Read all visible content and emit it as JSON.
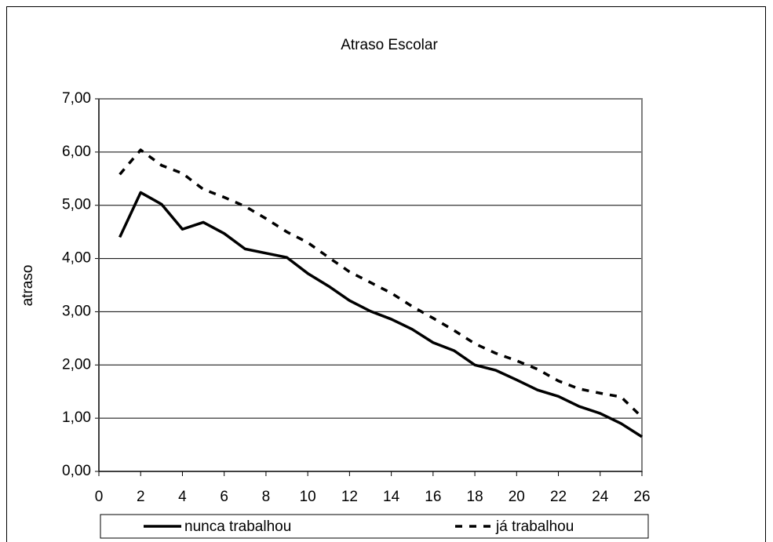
{
  "chart_data": {
    "type": "line",
    "title": "Atraso Escolar",
    "y_label": "atraso",
    "x": [
      1,
      2,
      3,
      4,
      5,
      6,
      7,
      8,
      9,
      10,
      11,
      12,
      13,
      14,
      15,
      16,
      17,
      18,
      19,
      20,
      21,
      22,
      23,
      24,
      25,
      26
    ],
    "series": [
      {
        "name": "nunca trabalhou",
        "color": "#000000",
        "dash": "solid",
        "values": [
          4.4,
          5.24,
          5.02,
          4.55,
          4.68,
          4.47,
          4.18,
          4.1,
          4.02,
          3.72,
          3.48,
          3.21,
          3.01,
          2.86,
          2.67,
          2.42,
          2.27,
          2.0,
          1.9,
          1.72,
          1.53,
          1.41,
          1.22,
          1.09,
          0.9,
          0.65
        ]
      },
      {
        "name": "já trabalhou",
        "color": "#000000",
        "dash": "dashed",
        "values": [
          5.58,
          6.04,
          5.75,
          5.6,
          5.3,
          5.15,
          4.98,
          4.75,
          4.5,
          4.3,
          4.02,
          3.75,
          3.55,
          3.35,
          3.1,
          2.88,
          2.65,
          2.4,
          2.22,
          2.08,
          1.92,
          1.7,
          1.55,
          1.47,
          1.4,
          1.02
        ]
      }
    ],
    "xlim": [
      0,
      26
    ],
    "xticks": [
      0,
      2,
      4,
      6,
      8,
      10,
      12,
      14,
      16,
      18,
      20,
      22,
      24,
      26
    ],
    "ylim": [
      0,
      7
    ],
    "yticks": [
      {
        "value": 0,
        "label": "0,00"
      },
      {
        "value": 1,
        "label": "1,00"
      },
      {
        "value": 2,
        "label": "2,00"
      },
      {
        "value": 3,
        "label": "3,00"
      },
      {
        "value": 4,
        "label": "4,00"
      },
      {
        "value": 5,
        "label": "5,00"
      },
      {
        "value": 6,
        "label": "6,00"
      },
      {
        "value": 7,
        "label": "7,00"
      }
    ],
    "grid": true,
    "legend": "bottom"
  }
}
